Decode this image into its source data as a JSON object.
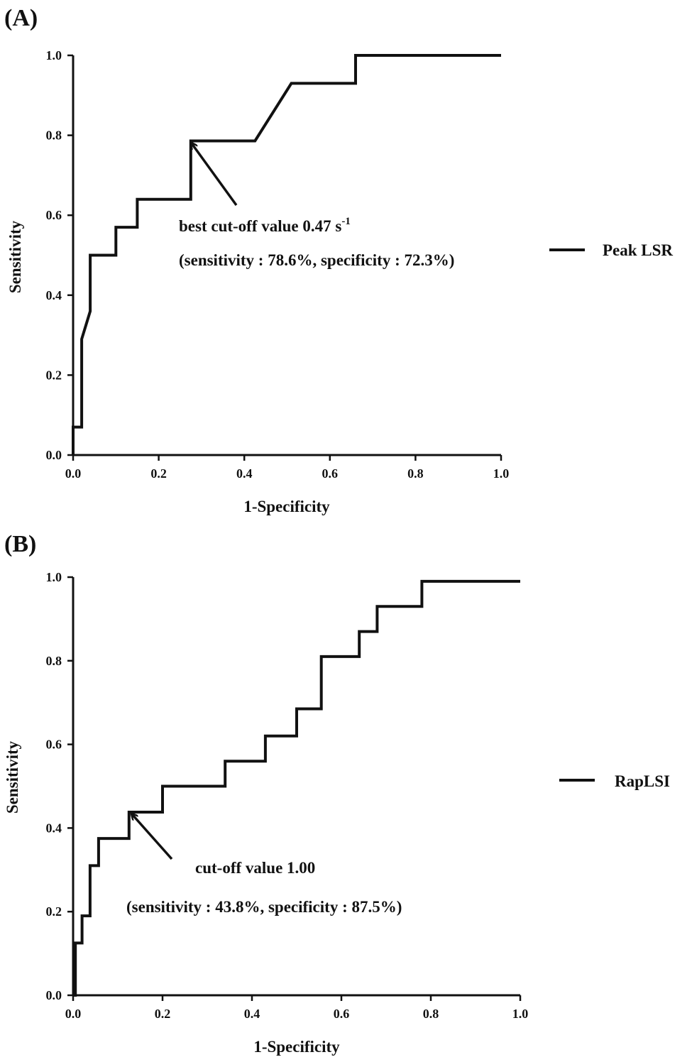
{
  "chart_data": [
    {
      "type": "line",
      "panel_label": "(A)",
      "xlabel": "1-Specificity",
      "ylabel": "Sensitivity",
      "xlim": [
        0,
        1
      ],
      "ylim": [
        0,
        1
      ],
      "x_ticks": [
        "0.0",
        "0.2",
        "0.4",
        "0.6",
        "0.8",
        "1.0"
      ],
      "y_ticks": [
        "0.0",
        "0.2",
        "0.4",
        "0.6",
        "0.8",
        "1.0"
      ],
      "grid": false,
      "legend_position": "right",
      "series": [
        {
          "name": "Peak LSR",
          "x": [
            0,
            0,
            0.02,
            0.02,
            0.04,
            0.04,
            0.1,
            0.1,
            0.15,
            0.15,
            0.275,
            0.275,
            0.425,
            0.51,
            0.66,
            0.66,
            1.0
          ],
          "y": [
            0,
            0.07,
            0.07,
            0.29,
            0.36,
            0.5,
            0.5,
            0.57,
            0.57,
            0.64,
            0.64,
            0.786,
            0.786,
            0.93,
            0.93,
            1.0,
            1.0
          ]
        }
      ],
      "annotation": {
        "line1": "best cut-off value 0.47 s",
        "line1_superscript": "-1",
        "line2": "(sensitivity : 78.6%, specificity : 72.3%)",
        "point": [
          0.277,
          0.786
        ]
      }
    },
    {
      "type": "line",
      "panel_label": "(B)",
      "xlabel": "1-Specificity",
      "ylabel": "Sensitivity",
      "xlim": [
        0,
        1
      ],
      "ylim": [
        0,
        1
      ],
      "x_ticks": [
        "0.0",
        "0.2",
        "0.4",
        "0.6",
        "0.8",
        "1.0"
      ],
      "y_ticks": [
        "0.0",
        "0.2",
        "0.4",
        "0.6",
        "0.8",
        "1.0"
      ],
      "grid": false,
      "legend_position": "right",
      "series": [
        {
          "name": "RapLSI",
          "x": [
            0,
            0.005,
            0.005,
            0.02,
            0.02,
            0.038,
            0.038,
            0.057,
            0.057,
            0.125,
            0.125,
            0.2,
            0.2,
            0.34,
            0.34,
            0.43,
            0.43,
            0.5,
            0.5,
            0.555,
            0.555,
            0.64,
            0.64,
            0.68,
            0.68,
            0.78,
            0.78,
            1.0
          ],
          "y": [
            0,
            0,
            0.125,
            0.125,
            0.19,
            0.19,
            0.31,
            0.31,
            0.375,
            0.375,
            0.438,
            0.438,
            0.5,
            0.5,
            0.56,
            0.56,
            0.62,
            0.62,
            0.685,
            0.685,
            0.81,
            0.81,
            0.87,
            0.87,
            0.93,
            0.93,
            0.99,
            0.99
          ]
        }
      ],
      "annotation": {
        "line1": "cut-off value 1.00",
        "line1_superscript": "",
        "line2": "(sensitivity : 43.8%, specificity : 87.5%)",
        "point": [
          0.13,
          0.438
        ]
      }
    }
  ]
}
